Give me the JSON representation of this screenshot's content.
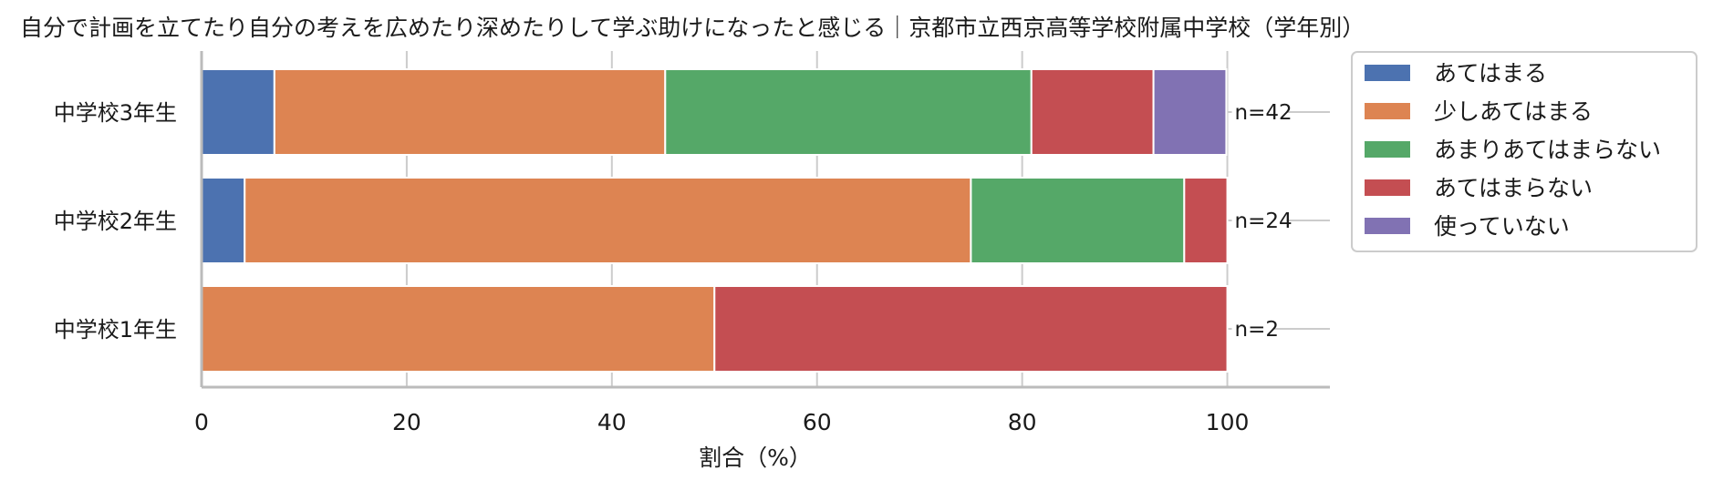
{
  "chart_data": {
    "type": "bar",
    "orientation": "horizontal",
    "stacked": true,
    "title": "自分で計画を立てたり自分の考えを広めたり深めたりして学ぶ助けになったと感じる｜京都市立西京高等学校附属中学校（学年別）",
    "xlabel": "割合（%）",
    "ylabel": "",
    "xlim": [
      0,
      110
    ],
    "xticks": [
      "0",
      "20",
      "40",
      "60",
      "80",
      "100"
    ],
    "grid": true,
    "legend_position": "right",
    "categories": [
      "中学校3年生",
      "中学校2年生",
      "中学校1年生"
    ],
    "n_labels": [
      "n=42",
      "n=24",
      "n=2"
    ],
    "series": [
      {
        "name": "あてはまる",
        "color": "#4c72b0",
        "values": [
          7.1,
          4.2,
          0
        ]
      },
      {
        "name": "少しあてはまる",
        "color": "#dd8452",
        "values": [
          38.1,
          70.8,
          50
        ]
      },
      {
        "name": "あまりあてはまらない",
        "color": "#55a868",
        "values": [
          35.7,
          20.8,
          0
        ]
      },
      {
        "name": "あてはまらない",
        "color": "#c44e52",
        "values": [
          11.9,
          4.2,
          50
        ]
      },
      {
        "name": "使っていない",
        "color": "#8172b3",
        "values": [
          7.1,
          0,
          0
        ]
      }
    ]
  }
}
